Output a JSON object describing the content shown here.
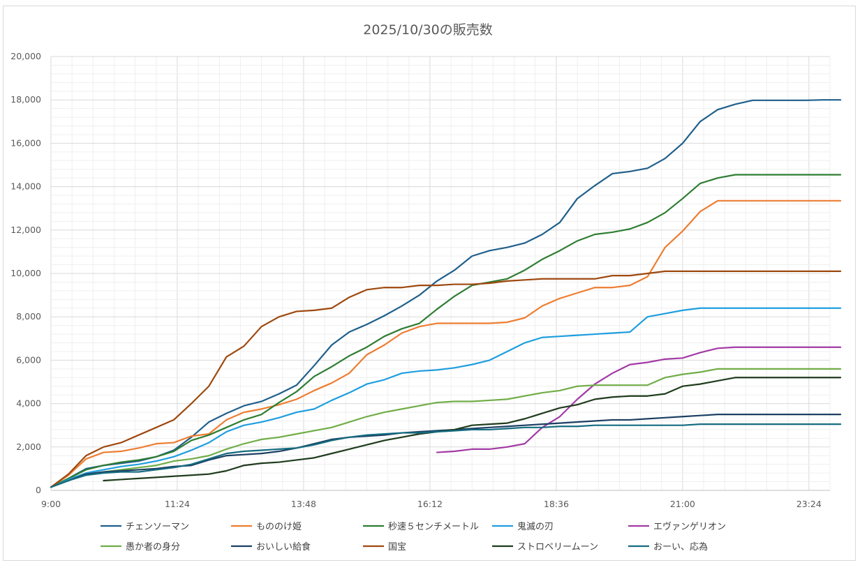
{
  "chart_data": {
    "type": "line",
    "title": "2025/10/30の販売数",
    "xlabel": "",
    "ylabel": "",
    "x_tick_labels": [
      "9:00",
      "11:24",
      "13:48",
      "16:12",
      "18:36",
      "21:00",
      "23:24"
    ],
    "y_tick_labels": [
      "0",
      "2,000",
      "4,000",
      "6,000",
      "8,000",
      "10,000",
      "12,000",
      "14,000",
      "16,000",
      "18,000",
      "20,000"
    ],
    "xlim_minutes_since_9_00": [
      0,
      888
    ],
    "ylim": [
      0,
      20000
    ],
    "x_interval_minutes": 24,
    "grid": true,
    "legend_position": "bottom",
    "series": [
      {
        "name": "チェンソーマン",
        "color": "#1f5f8b",
        "start_index": 0,
        "values": [
          150,
          550,
          1000,
          1150,
          1250,
          1350,
          1550,
          1850,
          2450,
          3150,
          3550,
          3900,
          4100,
          4450,
          4850,
          5750,
          6700,
          7300,
          7650,
          8050,
          8500,
          9000,
          9650,
          10150,
          10800,
          11050,
          11200,
          11400,
          11800,
          12350,
          13450,
          14050,
          14600,
          14700,
          14850,
          15300,
          16000,
          17000,
          17550,
          17800,
          17980,
          17980,
          17980,
          17980,
          18000,
          18000
        ]
      },
      {
        "name": "もののけ姫",
        "color": "#ed7d31",
        "start_index": 0,
        "values": [
          150,
          700,
          1450,
          1750,
          1800,
          1950,
          2150,
          2200,
          2500,
          2600,
          3250,
          3600,
          3750,
          3950,
          4200,
          4600,
          4950,
          5400,
          6250,
          6700,
          7250,
          7550,
          7700,
          7700,
          7700,
          7700,
          7750,
          7950,
          8500,
          8850,
          9100,
          9350,
          9350,
          9450,
          9850,
          11200,
          11950,
          12850,
          13350,
          13350,
          13350,
          13350,
          13350,
          13350,
          13350,
          13350
        ]
      },
      {
        "name": "秒速５センチメートル",
        "color": "#2e7d32",
        "start_index": 0,
        "values": [
          150,
          550,
          950,
          1150,
          1300,
          1400,
          1550,
          1800,
          2300,
          2550,
          2900,
          3250,
          3500,
          4050,
          4550,
          5250,
          5700,
          6200,
          6600,
          7100,
          7450,
          7700,
          8350,
          8950,
          9450,
          9600,
          9750,
          10150,
          10650,
          11050,
          11500,
          11800,
          11900,
          12050,
          12350,
          12800,
          13450,
          14150,
          14400,
          14550,
          14550,
          14550,
          14550,
          14550,
          14550,
          14550
        ]
      },
      {
        "name": "鬼滅の刃",
        "color": "#1e9ede",
        "start_index": 0,
        "values": [
          150,
          500,
          800,
          950,
          1100,
          1200,
          1350,
          1550,
          1850,
          2200,
          2700,
          3000,
          3150,
          3350,
          3600,
          3750,
          4150,
          4500,
          4900,
          5100,
          5400,
          5500,
          5550,
          5650,
          5800,
          6000,
          6400,
          6800,
          7050,
          7100,
          7150,
          7200,
          7250,
          7300,
          8000,
          8150,
          8300,
          8400,
          8400,
          8400,
          8400,
          8400,
          8400,
          8400,
          8400,
          8400
        ]
      },
      {
        "name": "エヴァンゲリオン",
        "color": "#a23aa5",
        "start_index": 22,
        "values": [
          1750,
          1800,
          1900,
          1900,
          2000,
          2150,
          2900,
          3400,
          4200,
          4900,
          5400,
          5800,
          5900,
          6050,
          6100,
          6350,
          6550,
          6600,
          6600,
          6600,
          6600,
          6600,
          6600,
          6600
        ]
      },
      {
        "name": "愚か者の身分",
        "color": "#70ad47",
        "start_index": 0,
        "values": [
          150,
          450,
          750,
          850,
          950,
          1050,
          1150,
          1350,
          1450,
          1600,
          1900,
          2150,
          2350,
          2450,
          2600,
          2750,
          2900,
          3150,
          3400,
          3600,
          3750,
          3900,
          4050,
          4100,
          4100,
          4150,
          4200,
          4350,
          4500,
          4600,
          4800,
          4850,
          4850,
          4850,
          4850,
          5200,
          5350,
          5450,
          5600,
          5600,
          5600,
          5600,
          5600,
          5600,
          5600,
          5600
        ]
      },
      {
        "name": "おいしい給食",
        "color": "#1c3f63",
        "start_index": 0,
        "values": [
          150,
          450,
          750,
          850,
          900,
          950,
          1000,
          1100,
          1150,
          1400,
          1600,
          1650,
          1700,
          1800,
          1950,
          2150,
          2350,
          2450,
          2500,
          2550,
          2650,
          2700,
          2750,
          2800,
          2850,
          2900,
          2950,
          3000,
          3050,
          3100,
          3150,
          3200,
          3250,
          3250,
          3300,
          3350,
          3400,
          3450,
          3500,
          3500,
          3500,
          3500,
          3500,
          3500,
          3500,
          3500
        ]
      },
      {
        "name": "国宝",
        "color": "#9e480e",
        "start_index": 0,
        "values": [
          150,
          750,
          1600,
          2000,
          2200,
          2550,
          2900,
          3250,
          4000,
          4800,
          6150,
          6650,
          7550,
          8000,
          8250,
          8300,
          8400,
          8900,
          9250,
          9350,
          9350,
          9450,
          9450,
          9500,
          9500,
          9550,
          9650,
          9700,
          9750,
          9750,
          9750,
          9750,
          9900,
          9900,
          10000,
          10100,
          10100,
          10100,
          10100,
          10100,
          10100,
          10100,
          10100,
          10100,
          10100,
          10100
        ]
      },
      {
        "name": "ストロベリームーン",
        "color": "#1f3b1c",
        "start_index": 3,
        "values": [
          450,
          500,
          550,
          600,
          650,
          700,
          750,
          900,
          1150,
          1250,
          1300,
          1400,
          1500,
          1700,
          1900,
          2100,
          2300,
          2450,
          2600,
          2700,
          2800,
          3000,
          3050,
          3100,
          3300,
          3550,
          3800,
          3950,
          4200,
          4300,
          4350,
          4350,
          4450,
          4800,
          4900,
          5050,
          5200,
          5200,
          5200,
          5200,
          5200,
          5200,
          5200
        ]
      },
      {
        "name": "おーい、応為",
        "color": "#146c80",
        "start_index": 0,
        "values": [
          150,
          450,
          700,
          800,
          850,
          850,
          950,
          1050,
          1200,
          1450,
          1700,
          1800,
          1850,
          1900,
          1950,
          2100,
          2300,
          2450,
          2550,
          2600,
          2650,
          2650,
          2700,
          2750,
          2800,
          2800,
          2850,
          2900,
          2900,
          2950,
          2950,
          3000,
          3000,
          3000,
          3000,
          3000,
          3000,
          3050,
          3050,
          3050,
          3050,
          3050,
          3050,
          3050,
          3050,
          3050
        ]
      }
    ]
  }
}
